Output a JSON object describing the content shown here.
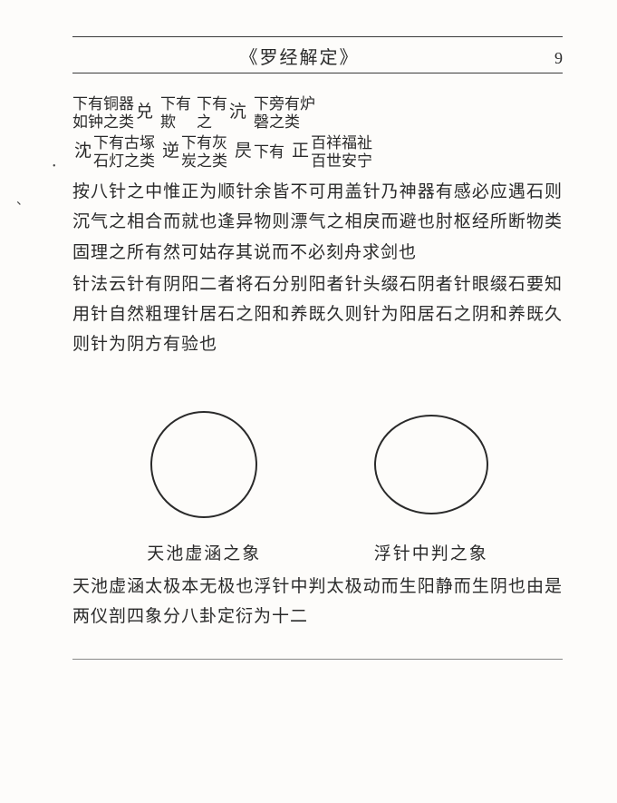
{
  "header": {
    "title": "《罗经解定》",
    "page_number": "9"
  },
  "annotations": {
    "row1": [
      {
        "stack": [
          "下有铜器",
          "如钟之类"
        ],
        "tag": "兑"
      },
      {
        "stack": [
          "下有",
          "欺"
        ],
        "tag": ""
      },
      {
        "stack": [
          "下有",
          "之"
        ],
        "tag": "沆"
      },
      {
        "stack": [
          "下旁有炉",
          "磬之类"
        ],
        "tag": ""
      }
    ],
    "row2": [
      {
        "pre": "沈",
        "stack": [
          "下有古塚",
          "石灯之类"
        ],
        "tag": ""
      },
      {
        "pre": "逆",
        "stack": [
          "下有灰",
          "炭之类"
        ],
        "tag": ""
      },
      {
        "pre": "昃",
        "stack": [
          "下有",
          ""
        ],
        "tag": ""
      },
      {
        "pre": "正",
        "stack": [
          "百祥福祉",
          "百世安宁"
        ],
        "tag": ""
      }
    ]
  },
  "body": {
    "p1": "按八针之中惟正为顺针余皆不可用盖针乃神器有感必应遇石则沉气之相合而就也逢异物则漂气之相戾而避也肘枢经所断物类固理之所有然可姑存其说而不必刻舟求剑也",
    "p2": "针法云针有阴阳二者将石分别阳者针头缀石阴者针眼缀石要知用针自然粗理针居石之阳和养既久则针为阳居石之阴和养既久则针为阴方有验也"
  },
  "diagrams": {
    "circle_stroke": "#2a2a2a",
    "circle_stroke_width": 2,
    "circle_radius": 58,
    "svg_size": 130,
    "left_caption": "天池虚涵之象",
    "right_caption": "浮针中判之象"
  },
  "footer_text": "天池虚涵太极本无极也浮针中判太极动而生阳静而生阴也由是两仪剖四象分八卦定衍为十二",
  "side_mark": "、",
  "dot_mark": "•"
}
